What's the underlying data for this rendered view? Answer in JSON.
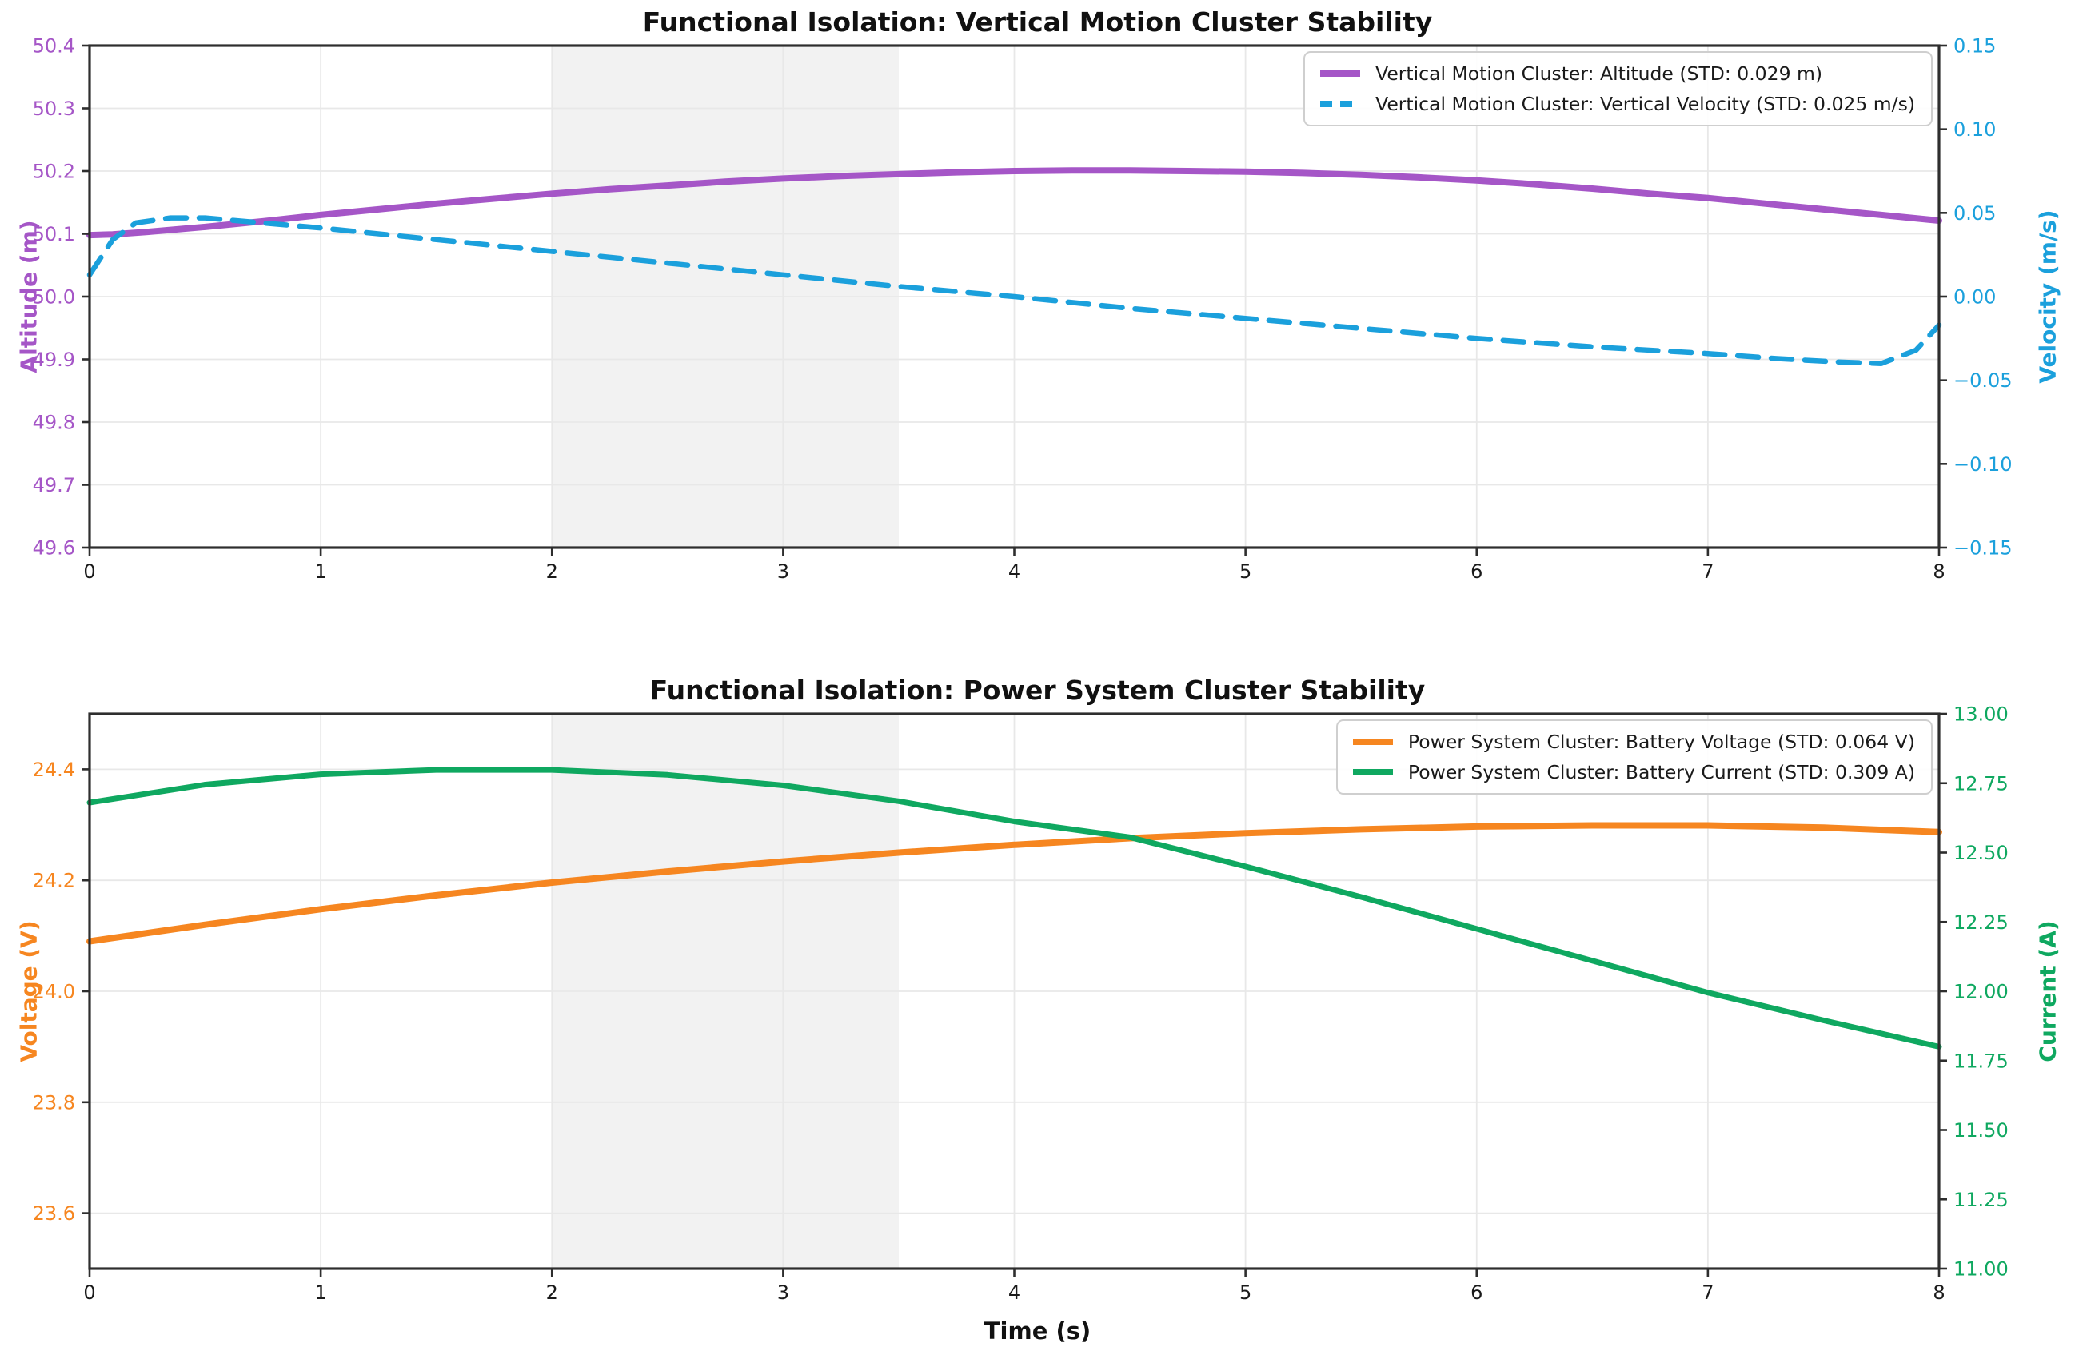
{
  "figure": {
    "xlabel": "Time (s)"
  },
  "style": {
    "background": "#ffffff",
    "grid_color": "#e8e8e8",
    "band_color": "#f2f2f2",
    "frame_color": "#2e2e2e",
    "tick_color": "#2e2e2e",
    "text_color": "#1a1a1a"
  },
  "chart_data": [
    {
      "type": "line",
      "title": "Functional Isolation: Vertical Motion Cluster Stability",
      "grid": true,
      "legend_position": "upper right",
      "shaded_region": [
        2.0,
        3.5
      ],
      "x_axis": {
        "range": [
          0,
          8
        ],
        "tick_values": [
          0,
          1,
          2,
          3,
          4,
          5,
          6,
          7,
          8
        ],
        "tick_labels": [
          "0",
          "1",
          "2",
          "3",
          "4",
          "5",
          "6",
          "7",
          "8"
        ]
      },
      "y_left": {
        "label": "Altitude (m)",
        "color": "#A556C7",
        "range": [
          49.6,
          50.4
        ],
        "tick_values": [
          50.4,
          50.3,
          50.2,
          50.1,
          50.0,
          49.9,
          49.8,
          49.7,
          49.6
        ],
        "tick_labels": [
          "50.4",
          "50.3",
          "50.2",
          "50.1",
          "50.0",
          "49.9",
          "49.8",
          "49.7",
          "49.6"
        ]
      },
      "y_right": {
        "label": "Velocity (m/s)",
        "color": "#1BA0DC",
        "range": [
          -0.15,
          0.15
        ],
        "tick_values": [
          0.15,
          0.1,
          0.05,
          0.0,
          -0.05,
          -0.1,
          -0.15
        ],
        "tick_labels": [
          "0.15",
          "0.10",
          "0.05",
          "0.00",
          "−0.05",
          "−0.10",
          "−0.15"
        ]
      },
      "series": [
        {
          "label": "Vertical Motion Cluster: Altitude (STD: 0.029 m)",
          "std": "0.029 m",
          "color": "#A556C7",
          "axis": "left",
          "style": "solid",
          "width": 8,
          "x": [
            0,
            0.1,
            0.25,
            0.5,
            0.75,
            1,
            1.25,
            1.5,
            1.75,
            2,
            2.25,
            2.5,
            2.75,
            3,
            3.25,
            3.5,
            3.75,
            4,
            4.25,
            4.5,
            4.75,
            5,
            5.25,
            5.5,
            5.75,
            6,
            6.25,
            6.5,
            6.75,
            7,
            7.25,
            7.5,
            7.75,
            8
          ],
          "y": [
            50.098,
            50.099,
            50.103,
            50.111,
            50.12,
            50.13,
            50.139,
            50.148,
            50.156,
            50.164,
            50.171,
            50.177,
            50.183,
            50.188,
            50.192,
            50.195,
            50.198,
            50.2,
            50.201,
            50.201,
            50.2,
            50.199,
            50.197,
            50.194,
            50.19,
            50.185,
            50.179,
            50.172,
            50.164,
            50.157,
            50.148,
            50.139,
            50.13,
            50.121
          ]
        },
        {
          "label": "Vertical Motion Cluster: Vertical Velocity (STD: 0.025 m/s)",
          "std": "0.025 m/s",
          "color": "#1BA0DC",
          "axis": "right",
          "style": "dashed",
          "width": 6.5,
          "dash": "26 16",
          "x": [
            0,
            0.1,
            0.2,
            0.35,
            0.5,
            0.75,
            1,
            1.5,
            2,
            2.5,
            3,
            3.5,
            4,
            4.5,
            5,
            5.5,
            6,
            6.5,
            7,
            7.3,
            7.55,
            7.75,
            7.9,
            8
          ],
          "y": [
            0.013,
            0.034,
            0.044,
            0.047,
            0.047,
            0.044,
            0.041,
            0.034,
            0.027,
            0.02,
            0.013,
            0.006,
            0.0,
            -0.007,
            -0.013,
            -0.019,
            -0.025,
            -0.03,
            -0.034,
            -0.037,
            -0.039,
            -0.04,
            -0.032,
            -0.017
          ]
        }
      ]
    },
    {
      "type": "line",
      "title": "Functional Isolation: Power System Cluster Stability",
      "grid": true,
      "legend_position": "upper right",
      "shaded_region": [
        2.0,
        3.5
      ],
      "x_axis": {
        "range": [
          0,
          8
        ],
        "tick_values": [
          0,
          1,
          2,
          3,
          4,
          5,
          6,
          7,
          8
        ],
        "tick_labels": [
          "0",
          "1",
          "2",
          "3",
          "4",
          "5",
          "6",
          "7",
          "8"
        ]
      },
      "y_left": {
        "label": "Voltage (V)",
        "color": "#F68620",
        "range": [
          23.5,
          24.5
        ],
        "tick_values": [
          24.4,
          24.2,
          24.0,
          23.8,
          23.6
        ],
        "tick_labels": [
          "24.4",
          "24.2",
          "24.0",
          "23.8",
          "23.6"
        ]
      },
      "y_right": {
        "label": "Current (A)",
        "color": "#0FA860",
        "range": [
          11.0,
          13.0
        ],
        "tick_values": [
          13.0,
          12.75,
          12.5,
          12.25,
          12.0,
          11.75,
          11.5,
          11.25,
          11.0
        ],
        "tick_labels": [
          "13.00",
          "12.75",
          "12.50",
          "12.25",
          "12.00",
          "11.75",
          "11.50",
          "11.25",
          "11.00"
        ]
      },
      "series": [
        {
          "label": "Power System Cluster: Battery Voltage (STD: 0.064 V)",
          "std": "0.064 V",
          "color": "#F68620",
          "axis": "left",
          "style": "solid",
          "width": 8,
          "x": [
            0,
            0.5,
            1,
            1.5,
            2,
            2.5,
            3,
            3.5,
            4,
            4.5,
            5,
            5.5,
            6,
            6.5,
            7,
            7.5,
            8
          ],
          "y": [
            24.09,
            24.12,
            24.148,
            24.173,
            24.196,
            24.216,
            24.234,
            24.25,
            24.264,
            24.276,
            24.285,
            24.292,
            24.297,
            24.299,
            24.299,
            24.295,
            24.287
          ]
        },
        {
          "label": "Power System Cluster: Battery Current (STD: 0.309 A)",
          "std": "0.309 A",
          "color": "#0FA860",
          "axis": "right",
          "style": "solid",
          "width": 7,
          "x": [
            0,
            0.5,
            1,
            1.5,
            2,
            2.5,
            3,
            3.5,
            4,
            4.5,
            5,
            5.5,
            6,
            6.5,
            7,
            7.5,
            8
          ],
          "y": [
            12.68,
            12.745,
            12.782,
            12.798,
            12.798,
            12.78,
            12.742,
            12.685,
            12.612,
            12.555,
            12.45,
            12.34,
            12.225,
            12.11,
            11.995,
            11.895,
            11.8
          ]
        }
      ]
    }
  ]
}
